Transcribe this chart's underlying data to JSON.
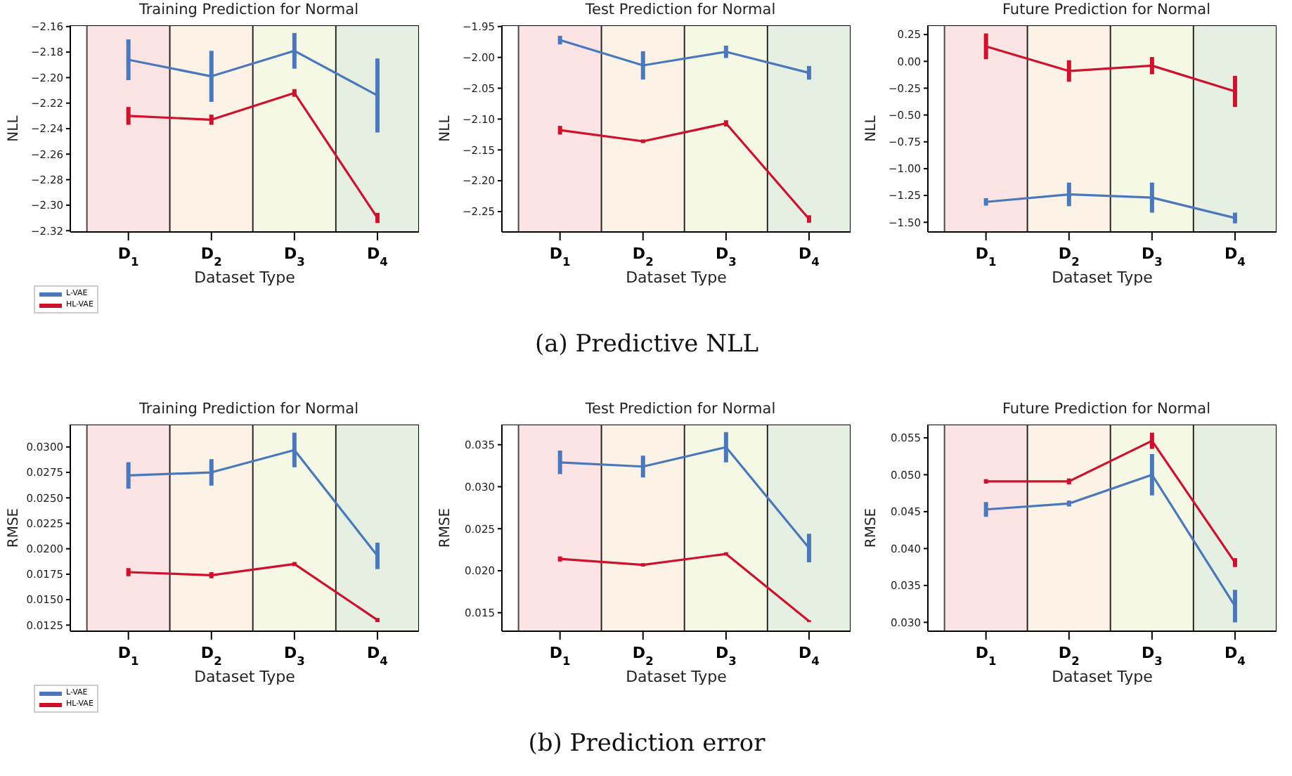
{
  "chart_data": [
    {
      "type": "line",
      "title": "Training Prediction for Normal",
      "xlabel": "Dataset Type",
      "ylabel": "NLL",
      "categories": [
        "D$_{1}$",
        "D$_{2}$",
        "D$_{3}$",
        "D$_{4}$"
      ],
      "series": [
        {
          "name": "L-VAE",
          "color": "#4a78bd",
          "values": [
            -2.186,
            -2.199,
            -2.179,
            -2.214
          ],
          "errors": [
            0.016,
            0.02,
            0.014,
            0.029
          ]
        },
        {
          "name": "HL-VAE",
          "color": "#d0112b",
          "values": [
            -2.23,
            -2.233,
            -2.212,
            -2.31
          ],
          "errors": [
            0.007,
            0.004,
            0.003,
            0.004
          ]
        }
      ],
      "ylim": [
        -2.321,
        -2.159
      ],
      "yticks": [
        {
          "value": -2.32,
          "label": "−2.32"
        },
        {
          "value": -2.3,
          "label": "−2.30"
        },
        {
          "value": -2.28,
          "label": "−2.28"
        },
        {
          "value": -2.26,
          "label": "−2.26"
        },
        {
          "value": -2.24,
          "label": "−2.24"
        },
        {
          "value": -2.22,
          "label": "−2.22"
        },
        {
          "value": -2.2,
          "label": "−2.20"
        },
        {
          "value": -2.18,
          "label": "−2.18"
        },
        {
          "value": -2.16,
          "label": "−2.16"
        }
      ],
      "bands": [
        {
          "axis": "x",
          "from": "D$_{1}$",
          "to": "D$_{1}$",
          "color": "#fde4e4"
        },
        {
          "axis": "x",
          "from": "D$_{2}$",
          "to": "D$_{2}$",
          "color": "#fdf2e6"
        },
        {
          "axis": "x",
          "from": "D$_{3}$",
          "to": "D$_{3}$",
          "color": "#f6f8e6"
        },
        {
          "axis": "x",
          "from": "D$_{4}$",
          "to": "D$_{4}$",
          "color": "#e5f0e3"
        }
      ],
      "legend": "bottom left"
    },
    {
      "type": "line",
      "title": "Test Prediction for Normal",
      "xlabel": "Dataset Type",
      "ylabel": "NLL",
      "categories": [
        "D$_{1}$",
        "D$_{2}$",
        "D$_{3}$",
        "D$_{4}$"
      ],
      "series": [
        {
          "color": "#4a78bd",
          "values": [
            -1.972,
            -2.013,
            -1.991,
            -2.025
          ],
          "errors": [
            0.007,
            0.023,
            0.01,
            0.011
          ]
        },
        {
          "color": "#d0112b",
          "values": [
            -2.118,
            -2.136,
            -2.107,
            -2.262
          ],
          "errors": [
            0.007,
            0.003,
            0.005,
            0.006
          ]
        }
      ],
      "ylim": [
        -2.283,
        -1.948
      ],
      "yticks": [
        {
          "value": -2.25,
          "label": "−2.25"
        },
        {
          "value": -2.2,
          "label": "−2.20"
        },
        {
          "value": -2.15,
          "label": "−2.15"
        },
        {
          "value": -2.1,
          "label": "−2.10"
        },
        {
          "value": -2.05,
          "label": "−2.05"
        },
        {
          "value": -2,
          "label": "−2.00"
        },
        {
          "value": -1.95,
          "label": "−1.95"
        }
      ],
      "bands": [
        {
          "axis": "x",
          "from": "D$_{1}$",
          "to": "D$_{1}$",
          "color": "#fde4e4"
        },
        {
          "axis": "x",
          "from": "D$_{2}$",
          "to": "D$_{2}$",
          "color": "#fdf2e6"
        },
        {
          "axis": "x",
          "from": "D$_{3}$",
          "to": "D$_{3}$",
          "color": "#f6f8e6"
        },
        {
          "axis": "x",
          "from": "D$_{4}$",
          "to": "D$_{4}$",
          "color": "#e5f0e3"
        }
      ],
      "annotations": [
        "(a) Predictive NLL"
      ]
    },
    {
      "type": "line",
      "title": "Future Prediction for Normal",
      "xlabel": "Dataset Type",
      "ylabel": "NLL",
      "categories": [
        "D$_{1}$",
        "D$_{2}$",
        "D$_{3}$",
        "D$_{4}$"
      ],
      "series": [
        {
          "color": "#4a78bd",
          "values": [
            -1.31,
            -1.24,
            -1.27,
            -1.46
          ],
          "errors": [
            0.035,
            0.11,
            0.14,
            0.05
          ]
        },
        {
          "color": "#d0112b",
          "values": [
            0.14,
            -0.09,
            -0.04,
            -0.28
          ],
          "errors": [
            0.12,
            0.1,
            0.08,
            0.145
          ]
        }
      ],
      "ylim": [
        -1.59,
        0.336
      ],
      "yticks": [
        {
          "value": -1.5,
          "label": "−1.50"
        },
        {
          "value": -1.25,
          "label": "−1.25"
        },
        {
          "value": -1,
          "label": "−1.00"
        },
        {
          "value": -0.75,
          "label": "−0.75"
        },
        {
          "value": -0.5,
          "label": "−0.50"
        },
        {
          "value": -0.25,
          "label": "−0.25"
        },
        {
          "value": 0,
          "label": "0.00"
        },
        {
          "value": 0.25,
          "label": "0.25"
        }
      ],
      "bands": [
        {
          "axis": "x",
          "from": "D$_{1}$",
          "to": "D$_{1}$",
          "color": "#fde4e4"
        },
        {
          "axis": "x",
          "from": "D$_{2}$",
          "to": "D$_{2}$",
          "color": "#fdf2e6"
        },
        {
          "axis": "x",
          "from": "D$_{3}$",
          "to": "D$_{3}$",
          "color": "#f6f8e6"
        },
        {
          "axis": "x",
          "from": "D$_{4}$",
          "to": "D$_{4}$",
          "color": "#e5f0e3"
        }
      ]
    },
    {
      "type": "line",
      "title": "Training Prediction for Normal",
      "xlabel": "Dataset Type",
      "ylabel": "RMSE",
      "categories": [
        "D$_{1}$",
        "D$_{2}$",
        "D$_{3}$",
        "D$_{4}$"
      ],
      "series": [
        {
          "name": "L-VAE",
          "color": "#4a78bd",
          "values": [
            0.0272,
            0.0275,
            0.0297,
            0.0193
          ],
          "errors": [
            0.0013,
            0.0013,
            0.0017,
            0.0013
          ]
        },
        {
          "name": "HL-VAE",
          "color": "#d0112b",
          "values": [
            0.0177,
            0.0174,
            0.0185,
            0.013
          ],
          "errors": [
            0.0004,
            0.0003,
            0.0002,
            0.0002
          ]
        }
      ],
      "ylim": [
        0.0119,
        0.0322
      ],
      "yticks": [
        {
          "value": 0.0125,
          "label": "0.0125"
        },
        {
          "value": 0.015,
          "label": "0.0150"
        },
        {
          "value": 0.0175,
          "label": "0.0175"
        },
        {
          "value": 0.02,
          "label": "0.0200"
        },
        {
          "value": 0.0225,
          "label": "0.0225"
        },
        {
          "value": 0.025,
          "label": "0.0250"
        },
        {
          "value": 0.0275,
          "label": "0.0275"
        },
        {
          "value": 0.03,
          "label": "0.0300"
        }
      ],
      "bands": [
        {
          "axis": "x",
          "from": "D$_{1}$",
          "to": "D$_{1}$",
          "color": "#fde4e4"
        },
        {
          "axis": "x",
          "from": "D$_{2}$",
          "to": "D$_{2}$",
          "color": "#fdf2e6"
        },
        {
          "axis": "x",
          "from": "D$_{3}$",
          "to": "D$_{3}$",
          "color": "#f6f8e6"
        },
        {
          "axis": "x",
          "from": "D$_{4}$",
          "to": "D$_{4}$",
          "color": "#e5f0e3"
        }
      ],
      "legend": "bottom left"
    },
    {
      "type": "line",
      "title": "Test Prediction for Normal",
      "xlabel": "Dataset Type",
      "ylabel": "RMSE",
      "categories": [
        "D$_{1}$",
        "D$_{2}$",
        "D$_{3}$",
        "D$_{4}$"
      ],
      "series": [
        {
          "color": "#4a78bd",
          "values": [
            0.0329,
            0.0324,
            0.0347,
            0.0227
          ],
          "errors": [
            0.0014,
            0.0013,
            0.0018,
            0.0017
          ]
        },
        {
          "color": "#d0112b",
          "values": [
            0.0214,
            0.0207,
            0.022,
            0.014
          ],
          "errors": [
            0.0003,
            0.0002,
            0.0002,
            0.0001
          ]
        }
      ],
      "ylim": [
        0.0128,
        0.0374
      ],
      "yticks": [
        {
          "value": 0.015,
          "label": "0.015"
        },
        {
          "value": 0.02,
          "label": "0.020"
        },
        {
          "value": 0.025,
          "label": "0.025"
        },
        {
          "value": 0.03,
          "label": "0.030"
        },
        {
          "value": 0.035,
          "label": "0.035"
        }
      ],
      "bands": [
        {
          "axis": "x",
          "from": "D$_{1}$",
          "to": "D$_{1}$",
          "color": "#fde4e4"
        },
        {
          "axis": "x",
          "from": "D$_{2}$",
          "to": "D$_{2}$",
          "color": "#fdf2e6"
        },
        {
          "axis": "x",
          "from": "D$_{3}$",
          "to": "D$_{3}$",
          "color": "#f6f8e6"
        },
        {
          "axis": "x",
          "from": "D$_{4}$",
          "to": "D$_{4}$",
          "color": "#e5f0e3"
        }
      ],
      "annotations": [
        "(b) Prediction error"
      ]
    },
    {
      "type": "line",
      "title": "Future Prediction for Normal",
      "xlabel": "Dataset Type",
      "ylabel": "RMSE",
      "categories": [
        "D$_{1}$",
        "D$_{2}$",
        "D$_{3}$",
        "D$_{4}$"
      ],
      "series": [
        {
          "color": "#4a78bd",
          "values": [
            0.0453,
            0.0461,
            0.05,
            0.0322
          ],
          "errors": [
            0.001,
            0.0004,
            0.0028,
            0.0022
          ]
        },
        {
          "color": "#d0112b",
          "values": [
            0.0491,
            0.0491,
            0.0546,
            0.0381
          ],
          "errors": [
            0.0003,
            0.0004,
            0.0011,
            0.0006
          ]
        }
      ],
      "ylim": [
        0.0288,
        0.0568
      ],
      "yticks": [
        {
          "value": 0.03,
          "label": "0.030"
        },
        {
          "value": 0.035,
          "label": "0.035"
        },
        {
          "value": 0.04,
          "label": "0.040"
        },
        {
          "value": 0.045,
          "label": "0.045"
        },
        {
          "value": 0.05,
          "label": "0.050"
        },
        {
          "value": 0.055,
          "label": "0.055"
        }
      ],
      "bands": [
        {
          "axis": "x",
          "from": "D$_{1}$",
          "to": "D$_{1}$",
          "color": "#fde4e4"
        },
        {
          "axis": "x",
          "from": "D$_{2}$",
          "to": "D$_{2}$",
          "color": "#fdf2e6"
        },
        {
          "axis": "x",
          "from": "D$_{3}$",
          "to": "D$_{3}$",
          "color": "#f6f8e6"
        },
        {
          "axis": "x",
          "from": "D$_{4}$",
          "to": "D$_{4}$",
          "color": "#e5f0e3"
        }
      ]
    }
  ]
}
